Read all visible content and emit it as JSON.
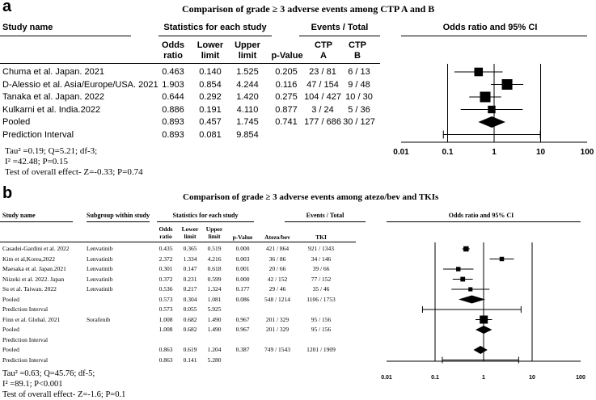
{
  "panel_a": {
    "letter": "a",
    "title": "Comparison of grade ≥ 3 adverse events among CTP A and B",
    "headers": {
      "study": "Study name",
      "stats_group": "Statistics for each study",
      "events_group": "Events / Total",
      "or_group": "Odds ratio and 95% CI",
      "or_col": [
        "Odds",
        "ratio"
      ],
      "lower_col": [
        "Lower",
        "limit"
      ],
      "upper_col": [
        "Upper",
        "limit"
      ],
      "p_col": "p-Value",
      "ev1": [
        "CTP",
        "A"
      ],
      "ev2": [
        "CTP",
        "B"
      ]
    },
    "rows": [
      {
        "study": "Chuma et al. Japan. 2021",
        "or": "0.463",
        "lower": "0.140",
        "upper": "1.525",
        "p": "0.205",
        "ev1": "23 / 81",
        "ev2": "6 / 13"
      },
      {
        "study": "D-Alessio et al. Asia/Europe/USA. 2021",
        "or": "1.903",
        "lower": "0.854",
        "upper": "4.244",
        "p": "0.116",
        "ev1": "47 / 154",
        "ev2": "9 / 48"
      },
      {
        "study": "Tanaka et al. Japan. 2022",
        "or": "0.644",
        "lower": "0.292",
        "upper": "1.420",
        "p": "0.275",
        "ev1": "104 / 427",
        "ev2": "10 / 30"
      },
      {
        "study": "Kulkarni et al. India.2022",
        "or": "0.886",
        "lower": "0.191",
        "upper": "4.110",
        "p": "0.877",
        "ev1": "3 / 24",
        "ev2": "5 / 36"
      },
      {
        "study": "Pooled",
        "or": "0.893",
        "lower": "0.457",
        "upper": "1.745",
        "p": "0.741",
        "ev1": "177 / 686",
        "ev2": "30 / 127"
      },
      {
        "study": "Prediction Interval",
        "or": "0.893",
        "lower": "0.081",
        "upper": "9.854",
        "p": "",
        "ev1": "",
        "ev2": ""
      }
    ],
    "axis_ticks": [
      "0.01",
      "0.1",
      "1",
      "10",
      "100"
    ],
    "footnotes": {
      "tau": "Tau² =0.19; Q=5.21; df-3;",
      "i2": "I² =42.48; P=0.15",
      "overall": "Test of overall effect- Z=-0.33; P=0.74"
    }
  },
  "panel_b": {
    "letter": "b",
    "title": "Comparison of grade ≥ 3 adverse events among atezo/bev and TKIs",
    "headers": {
      "study": "Study name",
      "subgroup": "Subgroup within study",
      "stats_group": "Statistics for each study",
      "events_group": "Events / Total",
      "or_group": "Odds ratio and 95% CI",
      "or_col": [
        "Odds",
        "ratio"
      ],
      "lower_col": [
        "Lower",
        "limit"
      ],
      "upper_col": [
        "Upper",
        "limit"
      ],
      "p_col": "p-Value",
      "ev1": "Atezo/bev",
      "ev2": "TKI"
    },
    "rows": [
      {
        "study": "Casadei-Gardini et al. 2022",
        "sub": "Lenvatinib",
        "or": "0.435",
        "lower": "0.365",
        "upper": "0.519",
        "p": "0.000",
        "ev1": "421 / 864",
        "ev2": "921 / 1343"
      },
      {
        "study": "Kim et al,Korea,2022",
        "sub": "Lenvatinib",
        "or": "2.372",
        "lower": "1.334",
        "upper": "4.216",
        "p": "0.003",
        "ev1": "36 / 86",
        "ev2": "34 / 146"
      },
      {
        "study": "Maesaka et al. Japan.2021",
        "sub": "Lenvatinib",
        "or": "0.301",
        "lower": "0.147",
        "upper": "0.618",
        "p": "0.001",
        "ev1": "20 / 66",
        "ev2": "39 / 66"
      },
      {
        "study": "Niizeki et al. 2022. Japan",
        "sub": "Lenvatinib",
        "or": "0.372",
        "lower": "0.231",
        "upper": "0.599",
        "p": "0.000",
        "ev1": "42 / 152",
        "ev2": "77 / 152"
      },
      {
        "study": "Su et al. Taiwan. 2022",
        "sub": "Lenvatinib",
        "or": "0.536",
        "lower": "0.217",
        "upper": "1.324",
        "p": "0.177",
        "ev1": "29 / 46",
        "ev2": "35 / 46"
      },
      {
        "study": "Pooled",
        "sub": "",
        "or": "0.573",
        "lower": "0.304",
        "upper": "1.081",
        "p": "0.086",
        "ev1": "548 / 1214",
        "ev2": "1106 / 1753"
      },
      {
        "study": "Prediction Interval",
        "sub": "",
        "or": "0.573",
        "lower": "0.055",
        "upper": "5.925",
        "p": "",
        "ev1": "",
        "ev2": ""
      },
      {
        "study": "Finn et al. Global. 2021",
        "sub": "Sorafenib",
        "or": "1.008",
        "lower": "0.682",
        "upper": "1.490",
        "p": "0.967",
        "ev1": "201 / 329",
        "ev2": "95 / 156"
      },
      {
        "study": "Pooled",
        "sub": "",
        "or": "1.008",
        "lower": "0.682",
        "upper": "1.490",
        "p": "0.967",
        "ev1": "201 / 329",
        "ev2": "95 / 156"
      },
      {
        "study": "Prediction Interval",
        "sub": "",
        "or": "",
        "lower": "",
        "upper": "",
        "p": "",
        "ev1": "",
        "ev2": ""
      },
      {
        "study": "Pooled",
        "sub": "",
        "or": "0.863",
        "lower": "0.619",
        "upper": "1.204",
        "p": "0.387",
        "ev1": "749 / 1543",
        "ev2": "1201 / 1909"
      },
      {
        "study": "Prediction Interval",
        "sub": "",
        "or": "0.863",
        "lower": "0.141",
        "upper": "5.280",
        "p": "",
        "ev1": "",
        "ev2": ""
      }
    ],
    "axis_ticks": [
      "0.01",
      "0.1",
      "1",
      "10",
      "100"
    ],
    "footnotes": {
      "tau": "Tau² =0.63; Q=45.76; df-5;",
      "i2": "I² =89.1; P<0.001",
      "overall": "Test of overall effect- Z=-1.6; P=0.1"
    }
  },
  "chart_data": [
    {
      "type": "forest",
      "title": "Comparison of grade ≥ 3 adverse events among CTP A and B",
      "xlabel": "Odds ratio and 95% CI",
      "x_scale": "log",
      "xlim": [
        0.01,
        100
      ],
      "series": [
        {
          "name": "Chuma et al. Japan. 2021",
          "or": 0.463,
          "lower": 0.14,
          "upper": 1.525,
          "kind": "study",
          "weight": 0.6
        },
        {
          "name": "D-Alessio et al. Asia/Europe/USA. 2021",
          "or": 1.903,
          "lower": 0.854,
          "upper": 4.244,
          "kind": "study",
          "weight": 1.0
        },
        {
          "name": "Tanaka et al. Japan. 2022",
          "or": 0.644,
          "lower": 0.292,
          "upper": 1.42,
          "kind": "study",
          "weight": 1.0
        },
        {
          "name": "Kulkarni et al. India.2022",
          "or": 0.886,
          "lower": 0.191,
          "upper": 4.11,
          "kind": "study",
          "weight": 0.4
        },
        {
          "name": "Pooled",
          "or": 0.893,
          "lower": 0.457,
          "upper": 1.745,
          "kind": "pooled"
        },
        {
          "name": "Prediction Interval",
          "or": 0.893,
          "lower": 0.081,
          "upper": 9.854,
          "kind": "pi"
        }
      ]
    },
    {
      "type": "forest",
      "title": "Comparison of grade ≥ 3 adverse events among atezo/bev and TKIs",
      "xlabel": "Odds ratio and 95% CI",
      "x_scale": "log",
      "xlim": [
        0.01,
        100
      ],
      "series": [
        {
          "name": "Casadei-Gardini et al. 2022",
          "or": 0.435,
          "lower": 0.365,
          "upper": 0.519,
          "kind": "study",
          "weight": 0.5
        },
        {
          "name": "Kim et al,Korea,2022",
          "or": 2.372,
          "lower": 1.334,
          "upper": 4.216,
          "kind": "study",
          "weight": 0.35
        },
        {
          "name": "Maesaka et al. Japan.2021",
          "or": 0.301,
          "lower": 0.147,
          "upper": 0.618,
          "kind": "study",
          "weight": 0.35
        },
        {
          "name": "Niizeki et al. 2022. Japan",
          "or": 0.372,
          "lower": 0.231,
          "upper": 0.599,
          "kind": "study",
          "weight": 0.4
        },
        {
          "name": "Su et al. Taiwan. 2022",
          "or": 0.536,
          "lower": 0.217,
          "upper": 1.324,
          "kind": "study",
          "weight": 0.3
        },
        {
          "name": "Pooled",
          "or": 0.573,
          "lower": 0.304,
          "upper": 1.081,
          "kind": "pooled"
        },
        {
          "name": "Prediction Interval",
          "or": 0.573,
          "lower": 0.055,
          "upper": 5.925,
          "kind": "pi"
        },
        {
          "name": "Finn et al. Global. 2021",
          "or": 1.008,
          "lower": 0.682,
          "upper": 1.49,
          "kind": "study",
          "weight": 1.0
        },
        {
          "name": "Pooled",
          "or": 1.008,
          "lower": 0.682,
          "upper": 1.49,
          "kind": "pooled"
        },
        {
          "name": "Prediction Interval",
          "kind": "none"
        },
        {
          "name": "Pooled",
          "or": 0.863,
          "lower": 0.619,
          "upper": 1.204,
          "kind": "pooled"
        },
        {
          "name": "Prediction Interval",
          "or": 0.863,
          "lower": 0.141,
          "upper": 5.28,
          "kind": "pi"
        }
      ]
    }
  ]
}
